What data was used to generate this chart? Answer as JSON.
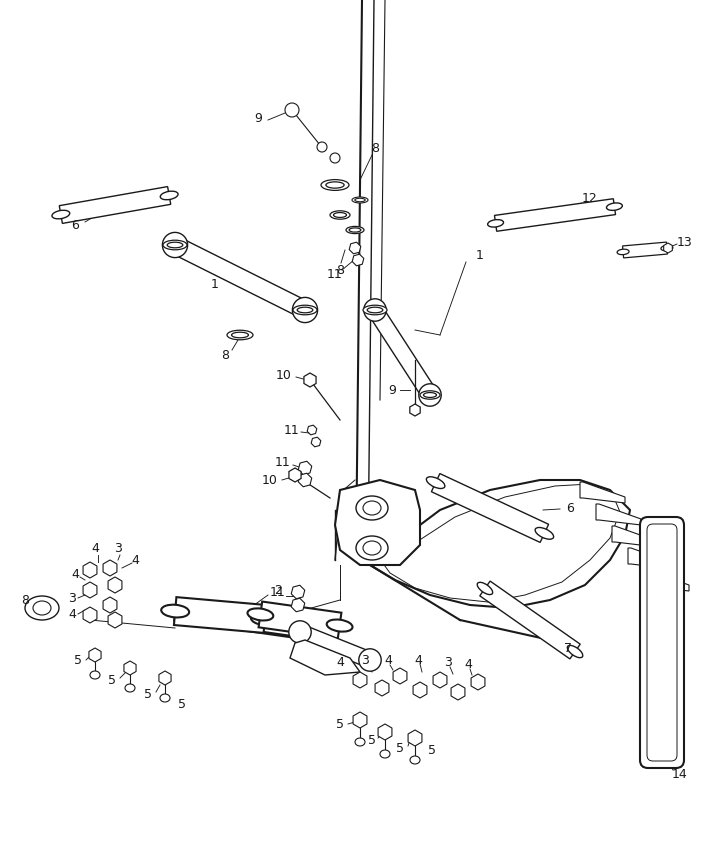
{
  "bg_color": "#ffffff",
  "lc": "#1a1a1a",
  "fig_width": 7.25,
  "fig_height": 8.44,
  "dpi": 100
}
